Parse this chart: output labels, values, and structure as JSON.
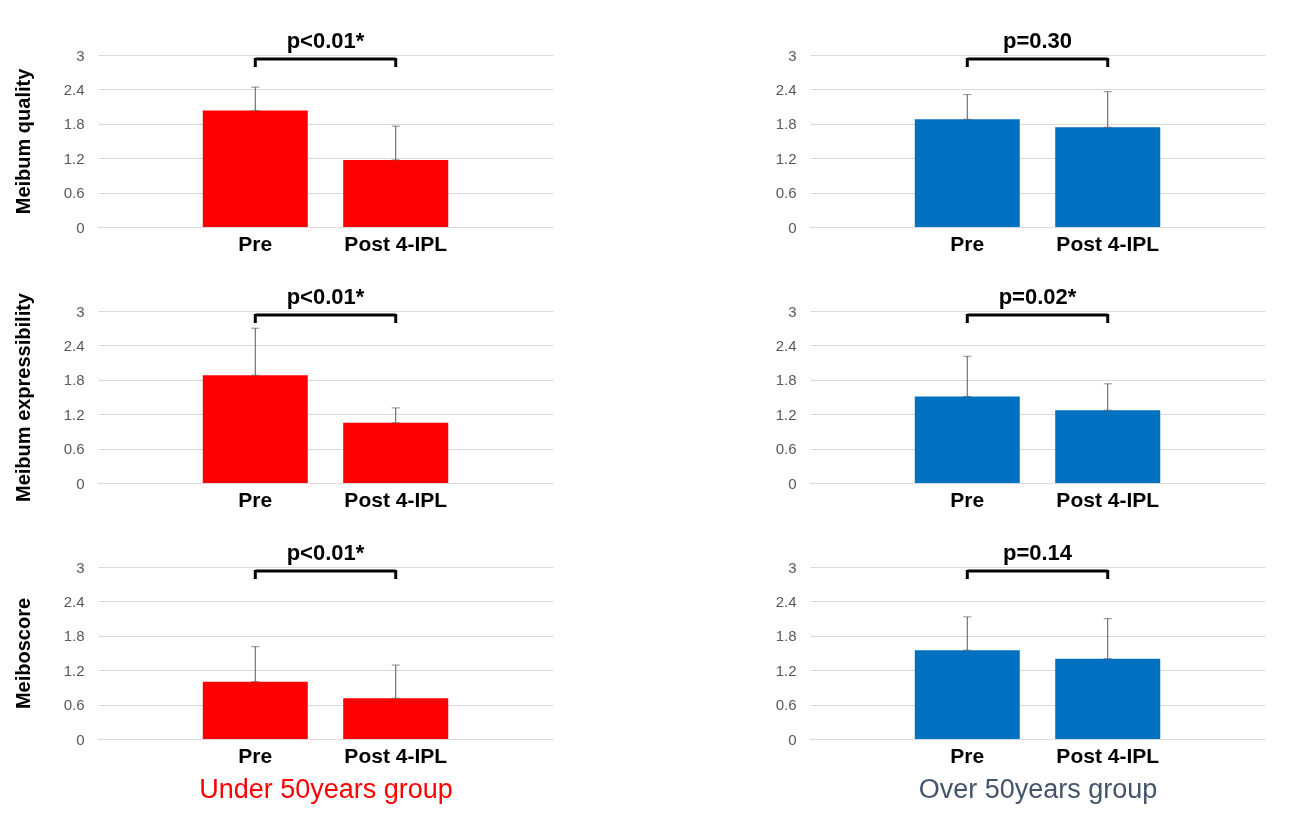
{
  "chart_data": [
    {
      "type": "bar",
      "ylabel": "Meibum quality",
      "categories": [
        "Pre",
        "Post 4-IPL"
      ],
      "series": [
        {
          "color": "#ff0000",
          "values": [
            2.03,
            1.17
          ],
          "errors": [
            [
              2.03,
              2.44
            ],
            [
              1.17,
              1.76
            ]
          ]
        }
      ],
      "ylim": [
        0,
        3
      ],
      "yticks": [
        0,
        0.6,
        1.2,
        1.8,
        2.4,
        3
      ],
      "grid": "y",
      "annotations": [
        "p<0.01*"
      ]
    },
    {
      "type": "bar",
      "categories": [
        "Pre",
        "Post 4-IPL"
      ],
      "series": [
        {
          "color": "#0070c0",
          "values": [
            1.88,
            1.74
          ],
          "errors": [
            [
              1.88,
              2.31
            ],
            [
              1.74,
              2.36
            ]
          ]
        }
      ],
      "ylim": [
        0,
        3
      ],
      "yticks": [
        0,
        0.6,
        1.2,
        1.8,
        2.4,
        3
      ],
      "grid": "y",
      "annotations": [
        "p=0.30"
      ]
    },
    {
      "type": "bar",
      "ylabel": "Meibum expressibility",
      "categories": [
        "Pre",
        "Post 4-IPL"
      ],
      "series": [
        {
          "color": "#ff0000",
          "values": [
            1.88,
            1.05
          ],
          "errors": [
            [
              1.88,
              2.7
            ],
            [
              1.05,
              1.31
            ]
          ]
        }
      ],
      "ylim": [
        0,
        3
      ],
      "yticks": [
        0,
        0.6,
        1.2,
        1.8,
        2.4,
        3
      ],
      "grid": "y",
      "annotations": [
        "p<0.01*"
      ]
    },
    {
      "type": "bar",
      "categories": [
        "Pre",
        "Post 4-IPL"
      ],
      "series": [
        {
          "color": "#0070c0",
          "values": [
            1.51,
            1.27
          ],
          "errors": [
            [
              1.51,
              2.21
            ],
            [
              1.27,
              1.73
            ]
          ]
        }
      ],
      "ylim": [
        0,
        3
      ],
      "yticks": [
        0,
        0.6,
        1.2,
        1.8,
        2.4,
        3
      ],
      "grid": "y",
      "annotations": [
        "p=0.02*"
      ]
    },
    {
      "type": "bar",
      "ylabel": "Meiboscore",
      "xlabel": "Under 50years group",
      "categories": [
        "Pre",
        "Post 4-IPL"
      ],
      "series": [
        {
          "color": "#ff0000",
          "values": [
            1.0,
            0.71
          ],
          "errors": [
            [
              1.0,
              1.61
            ],
            [
              0.71,
              1.29
            ]
          ]
        }
      ],
      "ylim": [
        0,
        3
      ],
      "yticks": [
        0,
        0.6,
        1.2,
        1.8,
        2.4,
        3
      ],
      "grid": "y",
      "annotations": [
        "p<0.01*"
      ]
    },
    {
      "type": "bar",
      "xlabel": "Over 50years group",
      "categories": [
        "Pre",
        "Post 4-IPL"
      ],
      "series": [
        {
          "color": "#0070c0",
          "values": [
            1.55,
            1.4
          ],
          "errors": [
            [
              1.55,
              2.13
            ],
            [
              1.4,
              2.1
            ]
          ]
        }
      ],
      "ylim": [
        0,
        3
      ],
      "yticks": [
        0,
        0.6,
        1.2,
        1.8,
        2.4,
        3
      ],
      "grid": "y",
      "annotations": [
        "p=0.14"
      ]
    }
  ]
}
